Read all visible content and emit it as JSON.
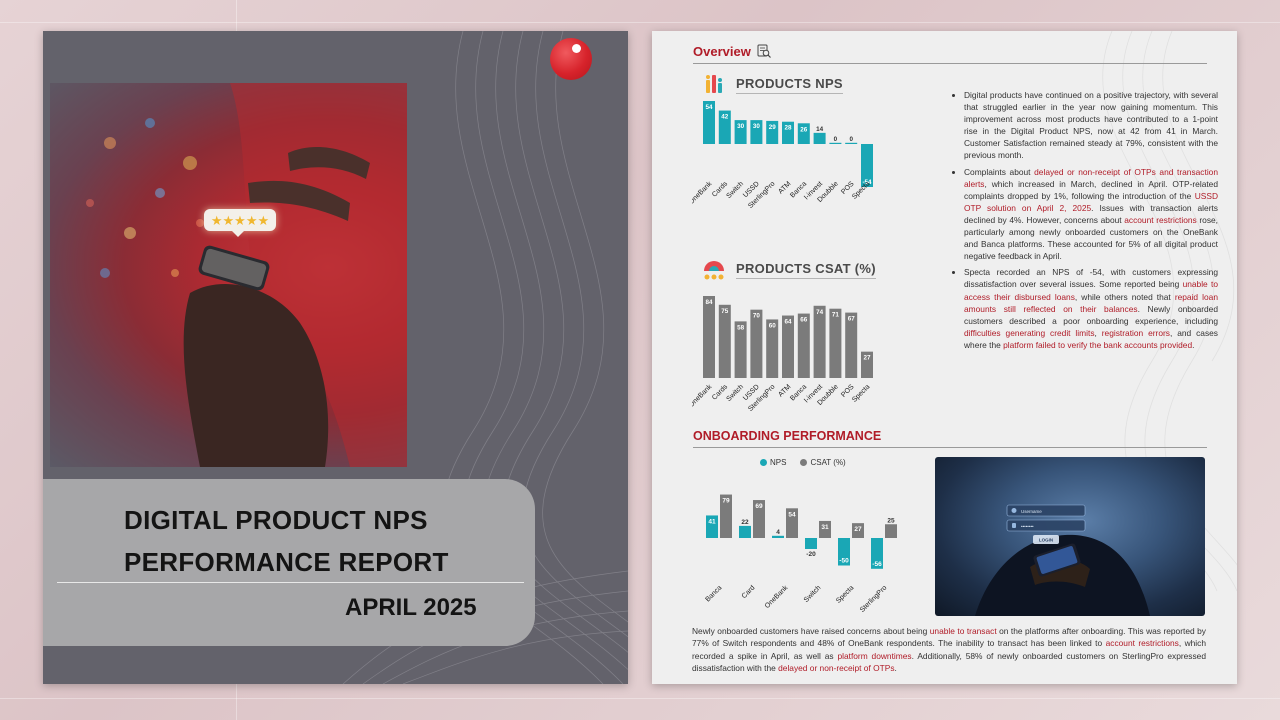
{
  "cover": {
    "title_line1": "DIGITAL PRODUCT NPS",
    "title_line2": "PERFORMANCE REPORT",
    "date": "APRIL 2025",
    "rating_stars": "★★★★★",
    "logo_icon": "red-circle-logo-icon",
    "colors": {
      "background": "#63626b",
      "title_panel": "#a7a7a9",
      "logo": "#d7232b"
    }
  },
  "report": {
    "overview_heading": "Overview",
    "overview_icon": "magnifier-document-icon",
    "products_nps_title": "PRODUCTS NPS",
    "products_csat_title": "PRODUCTS CSAT (%)",
    "onboarding_heading": "ONBOARDING PERFORMANCE",
    "accent_color": "#b01c28",
    "bullets": [
      [
        {
          "t": "Digital products have continued on a positive trajectory, with several that struggled earlier in the year now gaining momentum. This improvement across most products have contributed to a 1-point rise in the Digital Product NPS, now at 42 from 41 in March. Customer Satisfaction remained steady at 79%, consistent with the previous month.",
          "hl": false
        }
      ],
      [
        {
          "t": "Complaints about ",
          "hl": false
        },
        {
          "t": "delayed or non-receipt of OTPs and transaction alerts",
          "hl": true
        },
        {
          "t": ", which increased in March, declined in April. OTP-related complaints dropped by 1%, following the introduction of the ",
          "hl": false
        },
        {
          "t": "USSD OTP solution on April 2, 2025",
          "hl": true
        },
        {
          "t": ". Issues with transaction alerts declined by 4%. However, concerns about ",
          "hl": false
        },
        {
          "t": "account restrictions",
          "hl": true
        },
        {
          "t": " rose, particularly among newly onboarded customers on the OneBank and Banca platforms. These accounted for 5% of all digital product negative feedback in April.",
          "hl": false
        }
      ],
      [
        {
          "t": "Specta recorded an NPS of -54, with customers expressing dissatisfaction over several issues. Some reported being ",
          "hl": false
        },
        {
          "t": "unable to access their disbursed loans",
          "hl": true
        },
        {
          "t": ", while others noted that ",
          "hl": false
        },
        {
          "t": "repaid loan amounts still reflected on their balances",
          "hl": true
        },
        {
          "t": ". Newly onboarded customers described a poor onboarding experience, including ",
          "hl": false
        },
        {
          "t": "difficulties generating credit limits",
          "hl": true
        },
        {
          "t": ", ",
          "hl": false
        },
        {
          "t": "registration errors",
          "hl": true
        },
        {
          "t": ", and cases where the ",
          "hl": false
        },
        {
          "t": "platform failed to verify the bank accounts provided",
          "hl": true
        },
        {
          "t": ".",
          "hl": false
        }
      ]
    ],
    "bottom_paragraph": [
      {
        "t": "Newly onboarded customers have raised concerns about being ",
        "hl": false
      },
      {
        "t": "unable to transact",
        "hl": true
      },
      {
        "t": " on the platforms after onboarding. This was reported by 77% of Switch respondents and 48% of OneBank respondents. The inability to transact has been linked to ",
        "hl": false
      },
      {
        "t": "account restrictions",
        "hl": true
      },
      {
        "t": ", which recorded a spike in April, as well as ",
        "hl": false
      },
      {
        "t": "platform downtimes",
        "hl": true
      },
      {
        "t": ". Additionally, 58% of newly onboarded customers on SterlingPro expressed dissatisfaction with the ",
        "hl": false
      },
      {
        "t": "delayed or non-receipt of OTPs",
        "hl": true
      },
      {
        "t": ".",
        "hl": false
      }
    ],
    "login_screen": {
      "username": "Username",
      "password": "••••••••",
      "button": "LOGIN"
    }
  },
  "chart_data": [
    {
      "type": "bar",
      "title": "PRODUCTS NPS",
      "categories": [
        "OneBank",
        "Cards",
        "Switch",
        "USSD",
        "SterlingPro",
        "ATM",
        "Banca",
        "I-invest",
        "Doubble",
        "POS",
        "Specta"
      ],
      "values": [
        54,
        42,
        30,
        30,
        29,
        28,
        26,
        14,
        0,
        0,
        -54
      ],
      "color": "#1aa7b5",
      "ylim": [
        -54,
        54
      ]
    },
    {
      "type": "bar",
      "title": "PRODUCTS CSAT (%)",
      "categories": [
        "OneBank",
        "Cards",
        "Switch",
        "USSD",
        "SterlingPro",
        "ATM",
        "Banca",
        "I-invest",
        "Doubble",
        "POS",
        "Specta"
      ],
      "values": [
        84,
        75,
        58,
        70,
        60,
        64,
        66,
        74,
        71,
        67,
        27
      ],
      "color": "#7b7b7b",
      "ylim": [
        0,
        84
      ]
    },
    {
      "type": "bar",
      "title": "ONBOARDING PERFORMANCE",
      "categories": [
        "Banca",
        "Card",
        "OneBank",
        "Switch",
        "Specta",
        "SterlingPro"
      ],
      "series": [
        {
          "name": "NPS",
          "values": [
            41,
            22,
            4,
            -20,
            -50,
            -56
          ],
          "color": "#1aa7b5"
        },
        {
          "name": "CSAT (%)",
          "values": [
            79,
            69,
            54,
            31,
            27,
            25
          ],
          "color": "#7b7b7b"
        }
      ],
      "legend": "top"
    }
  ]
}
